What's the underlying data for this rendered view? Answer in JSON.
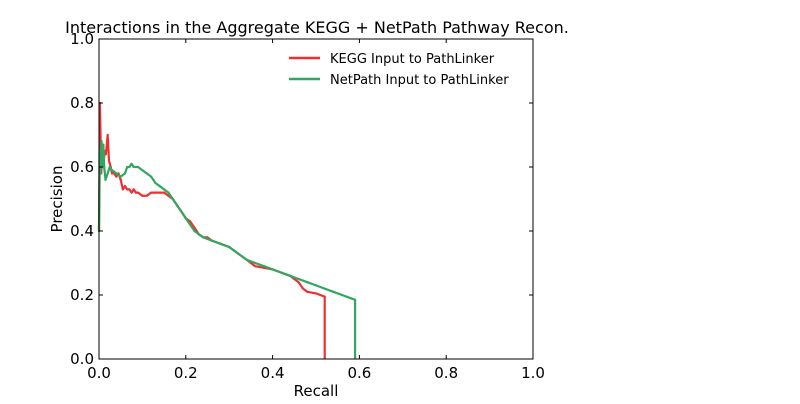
{
  "chart_data": {
    "type": "line",
    "title": "Interactions in the Aggregate KEGG + NetPath Pathway Recon.",
    "xlabel": "Recall",
    "ylabel": "Precision",
    "xlim": [
      0.0,
      1.0
    ],
    "ylim": [
      0.0,
      1.0
    ],
    "xticks": [
      0.0,
      0.2,
      0.4,
      0.6,
      0.8,
      1.0
    ],
    "yticks": [
      0.0,
      0.2,
      0.4,
      0.6,
      0.8,
      1.0
    ],
    "xtick_labels": [
      "0.0",
      "0.2",
      "0.4",
      "0.6",
      "0.8",
      "1.0"
    ],
    "ytick_labels": [
      "0.0",
      "0.2",
      "0.4",
      "0.6",
      "0.8",
      "1.0"
    ],
    "grid": false,
    "legend_position": "top-right",
    "series": [
      {
        "name": "KEGG Input to PathLinker",
        "color": "#f03030",
        "x": [
          0.0,
          0.002,
          0.004,
          0.005,
          0.007,
          0.01,
          0.013,
          0.016,
          0.02,
          0.023,
          0.027,
          0.03,
          0.035,
          0.04,
          0.045,
          0.05,
          0.055,
          0.06,
          0.065,
          0.07,
          0.075,
          0.08,
          0.085,
          0.09,
          0.1,
          0.11,
          0.12,
          0.13,
          0.14,
          0.15,
          0.16,
          0.17,
          0.18,
          0.19,
          0.2,
          0.21,
          0.22,
          0.23,
          0.24,
          0.25,
          0.26,
          0.28,
          0.3,
          0.32,
          0.34,
          0.36,
          0.38,
          0.4,
          0.42,
          0.44,
          0.45,
          0.46,
          0.47,
          0.48,
          0.5,
          0.51,
          0.52,
          0.52
        ],
        "y": [
          0.4,
          0.8,
          0.67,
          0.58,
          0.62,
          0.6,
          0.65,
          0.64,
          0.7,
          0.62,
          0.6,
          0.58,
          0.58,
          0.57,
          0.58,
          0.56,
          0.53,
          0.54,
          0.53,
          0.53,
          0.52,
          0.53,
          0.52,
          0.52,
          0.51,
          0.51,
          0.52,
          0.52,
          0.52,
          0.52,
          0.51,
          0.5,
          0.48,
          0.46,
          0.44,
          0.43,
          0.41,
          0.39,
          0.38,
          0.38,
          0.37,
          0.36,
          0.35,
          0.33,
          0.31,
          0.29,
          0.285,
          0.28,
          0.27,
          0.26,
          0.25,
          0.24,
          0.22,
          0.21,
          0.205,
          0.2,
          0.195,
          0.0
        ]
      },
      {
        "name": "NetPath Input to PathLinker",
        "color": "#30a860",
        "x": [
          0.0,
          0.002,
          0.004,
          0.006,
          0.008,
          0.01,
          0.012,
          0.015,
          0.02,
          0.025,
          0.03,
          0.04,
          0.05,
          0.06,
          0.065,
          0.07,
          0.075,
          0.08,
          0.09,
          0.1,
          0.11,
          0.12,
          0.125,
          0.13,
          0.14,
          0.15,
          0.16,
          0.17,
          0.18,
          0.19,
          0.2,
          0.21,
          0.22,
          0.23,
          0.24,
          0.25,
          0.26,
          0.28,
          0.3,
          0.32,
          0.34,
          0.36,
          0.38,
          0.4,
          0.42,
          0.44,
          0.46,
          0.48,
          0.5,
          0.52,
          0.54,
          0.56,
          0.58,
          0.59,
          0.59
        ],
        "y": [
          0.4,
          0.65,
          0.58,
          0.68,
          0.6,
          0.67,
          0.6,
          0.56,
          0.58,
          0.6,
          0.59,
          0.58,
          0.57,
          0.58,
          0.6,
          0.6,
          0.61,
          0.6,
          0.6,
          0.59,
          0.58,
          0.57,
          0.56,
          0.55,
          0.54,
          0.53,
          0.52,
          0.5,
          0.48,
          0.46,
          0.44,
          0.42,
          0.4,
          0.39,
          0.38,
          0.375,
          0.37,
          0.36,
          0.35,
          0.33,
          0.31,
          0.3,
          0.29,
          0.28,
          0.27,
          0.26,
          0.25,
          0.24,
          0.23,
          0.22,
          0.21,
          0.2,
          0.19,
          0.185,
          0.0
        ]
      }
    ]
  }
}
